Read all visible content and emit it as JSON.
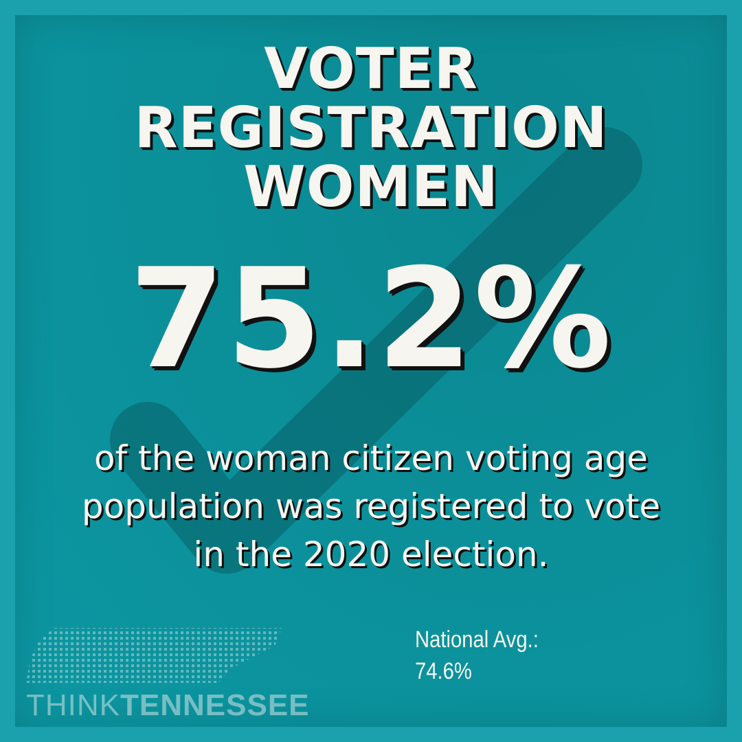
{
  "title": {
    "line1": "VOTER",
    "line2": "REGISTRATION",
    "line3": "WOMEN"
  },
  "stat": {
    "value": "75.2%"
  },
  "description": {
    "line1": "of the woman citizen voting age",
    "line2": "population was registered to vote",
    "line3": "in the 2020 election."
  },
  "national_average": {
    "label": "National Avg.:",
    "value": "74.6%"
  },
  "logo": {
    "word_light": "THINK",
    "word_bold": "TENNESSEE"
  },
  "colors": {
    "background": "#0a97a3",
    "text": "#f6f5ef",
    "checkmark": "#0a5f66"
  },
  "icons": {
    "background": "checkmark-icon",
    "logo": "tennessee-dot-map-icon"
  }
}
